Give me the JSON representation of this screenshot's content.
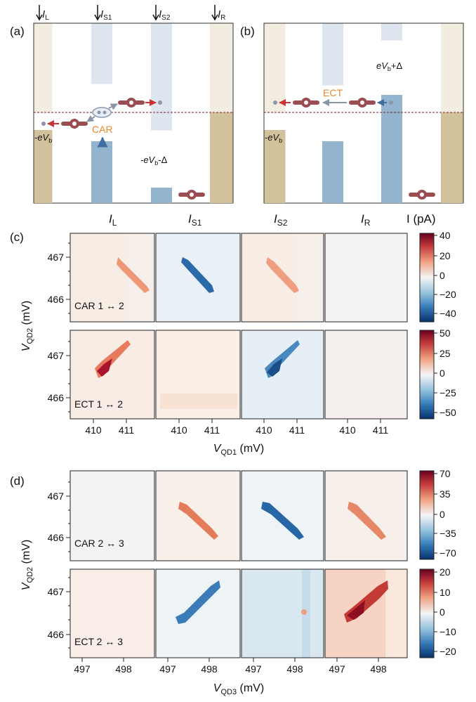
{
  "panel_a": {
    "label": "(a)",
    "top_leads": [
      "I",
      "I",
      "I",
      "I"
    ],
    "top_lead_subs": [
      "L",
      "S1",
      "S2",
      "R"
    ],
    "process": "CAR",
    "bias_left": "-eV",
    "bias_left_sub": "b",
    "gap_label_pre": "-eV",
    "gap_label_sub": "b",
    "gap_label_post": "-Δ"
  },
  "panel_b": {
    "label": "(b)",
    "process": "ECT",
    "bias_left": "-eV",
    "bias_left_sub": "b",
    "gap_label_pre": "eV",
    "gap_label_sub": "b",
    "gap_label_post": "+Δ"
  },
  "columns": {
    "main": [
      "I",
      "I",
      "I",
      "I"
    ],
    "subs": [
      "L",
      "S1",
      "S2",
      "R"
    ],
    "colorbar_title": "I (pA)"
  },
  "panel_c": {
    "label": "(c)",
    "ylabel": "V",
    "ylabel_sub": "QD2",
    "ylabel_unit": " (mV)",
    "yticks": [
      "467",
      "466"
    ],
    "xticks": [
      "410",
      "411"
    ],
    "xlabel": "V",
    "xlabel_sub": "QD1",
    "xlabel_unit": " (mV)",
    "rows": [
      {
        "name": "CAR 1 ↔ 2",
        "cbar": [
          "40",
          "20",
          "0",
          "−20",
          "−40"
        ]
      },
      {
        "name": "ECT 1 ↔ 2",
        "cbar": [
          "50",
          "25",
          "0",
          "−25",
          "−50"
        ]
      }
    ]
  },
  "panel_d": {
    "label": "(d)",
    "ylabel": "V",
    "ylabel_sub": "QD2",
    "ylabel_unit": " (mV)",
    "yticks": [
      "467",
      "466"
    ],
    "xticks": [
      "497",
      "498"
    ],
    "xlabel": "V",
    "xlabel_sub": "QD3",
    "xlabel_unit": " (mV)",
    "rows": [
      {
        "name": "CAR 2 ↔ 3",
        "cbar": [
          "70",
          "35",
          "0",
          "−35",
          "−70"
        ]
      },
      {
        "name": "ECT 2 ↔ 3",
        "cbar": [
          "20",
          "10",
          "0",
          "−10",
          "−20"
        ]
      }
    ]
  },
  "colors": {
    "lead_light": "#f3ece0",
    "lead_dark": "#d2c29c",
    "dot_light": "#dde5ee",
    "dot_dark": "#93b4cf",
    "electron": "#9a4e52",
    "arrow_red": "#cc3333",
    "arrow_blue": "#3f6ea0",
    "process_orange": "#e8872e",
    "positive": "#c0392b",
    "negative": "#1f5f99"
  }
}
